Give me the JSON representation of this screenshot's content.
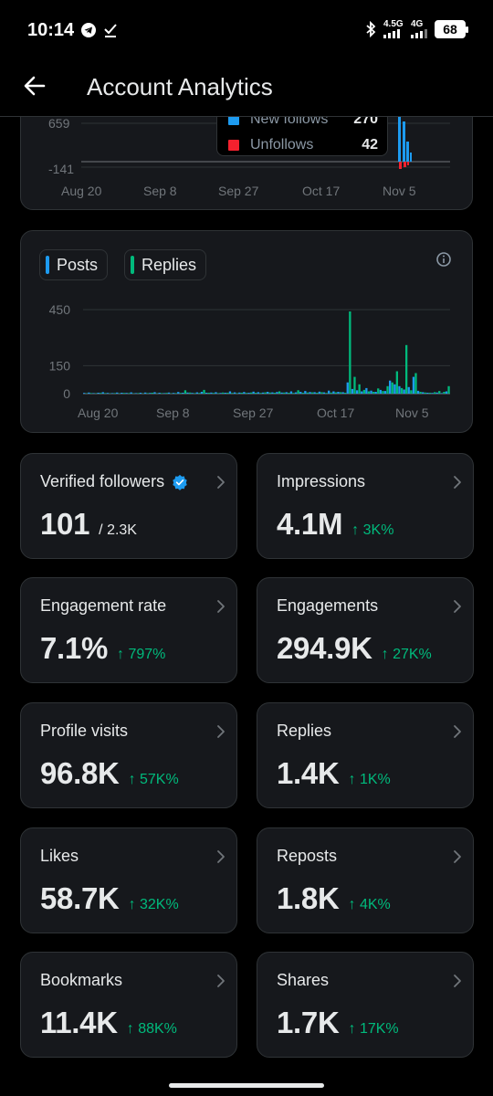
{
  "status_bar": {
    "time": "10:14",
    "network_1": "4.5G",
    "network_2": "4G",
    "battery": "68"
  },
  "header": {
    "title": "Account Analytics"
  },
  "followers_chart": {
    "tooltip": [
      {
        "label": "New follows",
        "value": "270",
        "color": "#1d9bf0"
      },
      {
        "label": "Unfollows",
        "value": "42",
        "color": "#f4212e"
      }
    ],
    "y_ticks": [
      "659",
      "-141"
    ],
    "x_ticks": [
      "Aug 20",
      "Sep 8",
      "Sep 27",
      "Oct 17",
      "Nov 5"
    ]
  },
  "chart_data": {
    "type": "bar",
    "title": "",
    "xlabel": "",
    "ylabel": "",
    "ylim": [
      0,
      450
    ],
    "legend": [
      "Posts",
      "Replies"
    ],
    "x_ticks": [
      "Aug 20",
      "Sep 8",
      "Sep 27",
      "Oct 17",
      "Nov 5"
    ],
    "y_ticks": [
      "450",
      "150",
      "0"
    ],
    "series": [
      {
        "name": "Posts",
        "color": "#1d9bf0",
        "values": [
          4,
          6,
          3,
          5,
          8,
          4,
          3,
          6,
          5,
          4,
          7,
          3,
          5,
          6,
          4,
          8,
          5,
          3,
          6,
          4,
          9,
          5,
          6,
          4,
          7,
          10,
          5,
          6,
          8,
          4,
          5,
          12,
          7,
          6,
          9,
          5,
          11,
          8,
          6,
          10,
          7,
          9,
          6,
          8,
          12,
          7,
          10,
          14,
          9,
          8,
          11,
          7,
          16,
          12,
          10,
          8,
          60,
          25,
          18,
          12,
          30,
          16,
          10,
          20,
          14,
          70,
          50,
          40,
          22,
          35,
          90,
          15,
          8,
          5,
          4,
          6,
          3,
          12
        ]
      },
      {
        "name": "Replies",
        "color": "#00ba7c",
        "values": [
          2,
          3,
          2,
          4,
          3,
          2,
          3,
          2,
          4,
          3,
          2,
          3,
          2,
          3,
          5,
          2,
          3,
          4,
          2,
          3,
          4,
          18,
          6,
          3,
          4,
          20,
          5,
          4,
          3,
          6,
          5,
          4,
          3,
          5,
          4,
          6,
          5,
          4,
          7,
          6,
          5,
          12,
          6,
          5,
          4,
          18,
          5,
          6,
          7,
          5,
          8,
          4,
          6,
          7,
          8,
          5,
          440,
          90,
          50,
          20,
          12,
          10,
          28,
          14,
          40,
          60,
          120,
          30,
          260,
          18,
          110,
          10,
          6,
          5,
          8,
          14,
          10,
          40
        ]
      }
    ]
  },
  "metrics": [
    {
      "label": "Verified followers",
      "value": "101",
      "sub": "/ 2.3K",
      "change": "",
      "verified": true
    },
    {
      "label": "Impressions",
      "value": "4.1M",
      "sub": "",
      "change": "↑ 3K%"
    },
    {
      "label": "Engagement rate",
      "value": "7.1%",
      "sub": "",
      "change": "↑ 797%"
    },
    {
      "label": "Engagements",
      "value": "294.9K",
      "sub": "",
      "change": "↑ 27K%"
    },
    {
      "label": "Profile visits",
      "value": "96.8K",
      "sub": "",
      "change": "↑ 57K%"
    },
    {
      "label": "Replies",
      "value": "1.4K",
      "sub": "",
      "change": "↑ 1K%"
    },
    {
      "label": "Likes",
      "value": "58.7K",
      "sub": "",
      "change": "↑ 32K%"
    },
    {
      "label": "Reposts",
      "value": "1.8K",
      "sub": "",
      "change": "↑ 4K%"
    },
    {
      "label": "Bookmarks",
      "value": "11.4K",
      "sub": "",
      "change": "↑ 88K%"
    },
    {
      "label": "Shares",
      "value": "1.7K",
      "sub": "",
      "change": "↑ 17K%"
    }
  ]
}
